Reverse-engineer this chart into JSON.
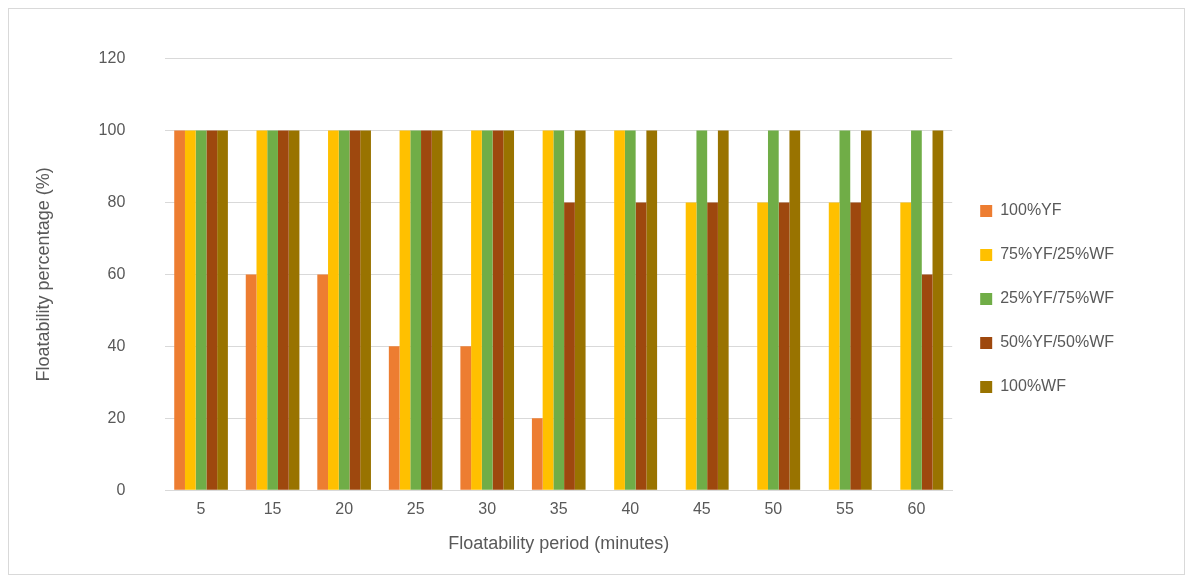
{
  "chart_data": {
    "type": "bar",
    "xlabel": "Floatability period (minutes)",
    "ylabel": "Floatability percentage (%)",
    "categories": [
      "5",
      "15",
      "20",
      "25",
      "30",
      "35",
      "40",
      "45",
      "50",
      "55",
      "60"
    ],
    "series": [
      {
        "name": "100%YF",
        "color": "#ed7d31",
        "values": [
          100,
          60,
          60,
          40,
          40,
          20,
          0,
          0,
          0,
          0,
          0
        ]
      },
      {
        "name": "75%YF/25%WF",
        "color": "#ffc000",
        "values": [
          100,
          100,
          100,
          100,
          100,
          100,
          100,
          80,
          80,
          80,
          80
        ]
      },
      {
        "name": "25%YF/75%WF",
        "color": "#70ad47",
        "values": [
          100,
          100,
          100,
          100,
          100,
          100,
          100,
          100,
          100,
          100,
          100
        ]
      },
      {
        "name": "50%YF/50%WF",
        "color": "#9e480e",
        "values": [
          100,
          100,
          100,
          100,
          100,
          80,
          80,
          80,
          80,
          80,
          60
        ]
      },
      {
        "name": "100%WF",
        "color": "#997300",
        "values": [
          100,
          100,
          100,
          100,
          100,
          100,
          100,
          100,
          100,
          100,
          100
        ]
      }
    ],
    "ylim": [
      0,
      120
    ],
    "yticks": [
      0,
      20,
      40,
      60,
      80,
      100,
      120
    ],
    "grid": "y",
    "legend": "right"
  }
}
